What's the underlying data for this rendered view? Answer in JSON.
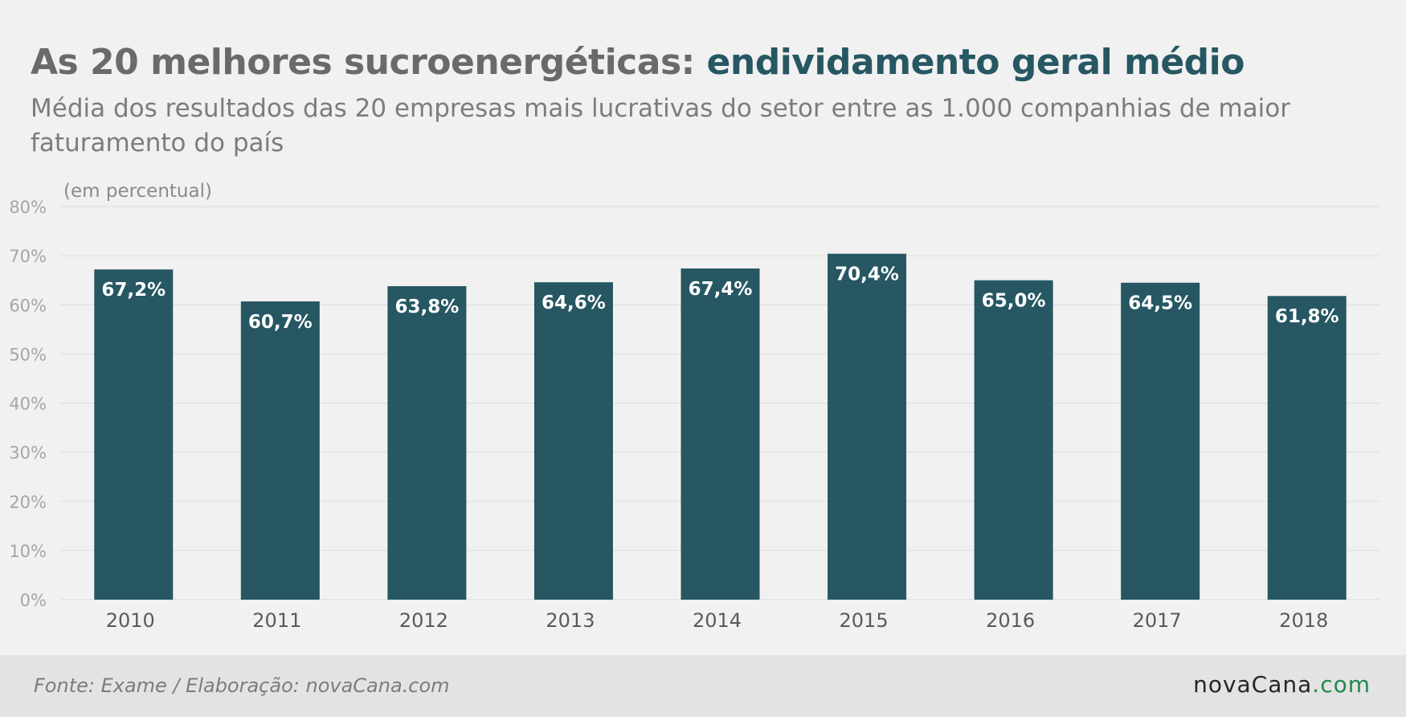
{
  "header": {
    "title_main": "As 20 melhores sucroenergéticas: ",
    "title_accent": "endividamento geral médio",
    "subtitle": "Média dos resultados das 20 empresas mais lucrativas do setor entre as 1.000 companhias de maior faturamento do país"
  },
  "chart_data": {
    "type": "bar",
    "title": "As 20 melhores sucroenergéticas: endividamento geral médio",
    "subtitle": "Média dos resultados das 20 empresas mais lucrativas do setor entre as 1.000 companhias de maior faturamento do país",
    "unit_label": "(em percentual)",
    "categories": [
      "2010",
      "2011",
      "2012",
      "2013",
      "2014",
      "2015",
      "2016",
      "2017",
      "2018"
    ],
    "values": [
      67.2,
      60.7,
      63.8,
      64.6,
      67.4,
      70.4,
      65.0,
      64.5,
      61.8
    ],
    "value_labels": [
      "67,2%",
      "60,7%",
      "63,8%",
      "64,6%",
      "67,4%",
      "70,4%",
      "65,0%",
      "64,5%",
      "61,8%"
    ],
    "yticks": [
      0,
      10,
      20,
      30,
      40,
      50,
      60,
      70,
      80
    ],
    "ytick_labels": [
      "0%",
      "10%",
      "20%",
      "30%",
      "40%",
      "50%",
      "60%",
      "70%",
      "80%"
    ],
    "ylim": [
      0,
      80
    ],
    "grid": true,
    "bar_color": "#265763"
  },
  "footer": {
    "source": "Fonte: Exame / Elaboração: novaCana.com",
    "logo_main": "novaCana",
    "logo_tld": ".com"
  }
}
